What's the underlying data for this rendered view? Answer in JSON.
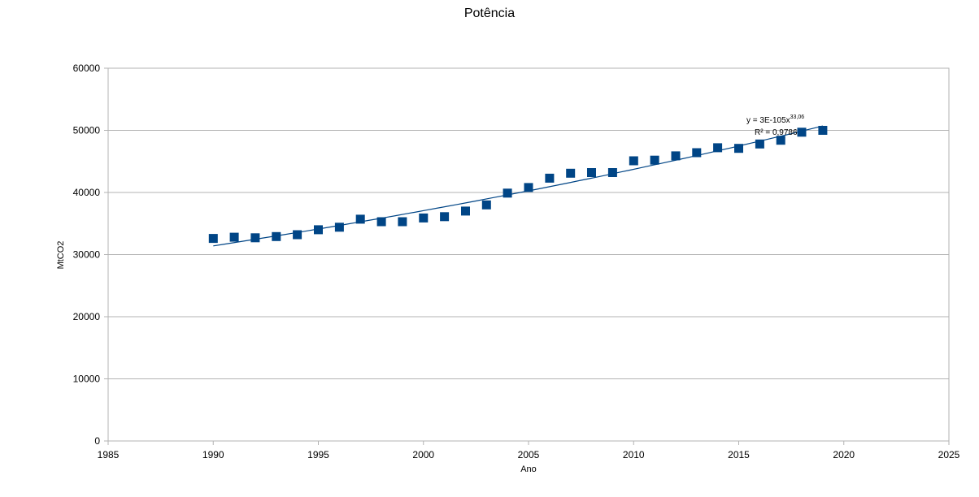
{
  "chart_data": {
    "type": "scatter",
    "title": "Potência",
    "xlabel": "Ano",
    "ylabel": "MtCO2",
    "xlim": [
      1985,
      2025
    ],
    "ylim": [
      0,
      60000
    ],
    "x_ticks": [
      1985,
      1990,
      1995,
      2000,
      2005,
      2010,
      2015,
      2020,
      2025
    ],
    "y_ticks": [
      0,
      10000,
      20000,
      30000,
      40000,
      50000,
      60000
    ],
    "grid": "horizontal",
    "legend": "none",
    "colors": {
      "marker": "#004586",
      "trend": "#004586",
      "grid": "#b3b3b3"
    },
    "series": [
      {
        "x": [
          1990,
          1991,
          1992,
          1993,
          1994,
          1995,
          1996,
          1997,
          1998,
          1999,
          2000,
          2001,
          2002,
          2003,
          2004,
          2005,
          2006,
          2007,
          2008,
          2009,
          2010,
          2011,
          2012,
          2013,
          2014,
          2015,
          2016,
          2017,
          2018,
          2019
        ],
        "values": [
          32600,
          32800,
          32700,
          32900,
          33200,
          34000,
          34400,
          35700,
          35300,
          35300,
          35900,
          36100,
          37000,
          38000,
          39900,
          40800,
          42300,
          43100,
          43200,
          43200,
          45100,
          45200,
          45900,
          46400,
          47200,
          47100,
          47800,
          48400,
          49700,
          50000
        ]
      }
    ],
    "trendline": {
      "type": "power",
      "equation": "y = 3E-105x",
      "exponent": "33,06",
      "r2_label": "R² = 0,9786",
      "x_range": [
        1990,
        2019
      ],
      "y_range": [
        31400,
        50700
      ]
    }
  }
}
